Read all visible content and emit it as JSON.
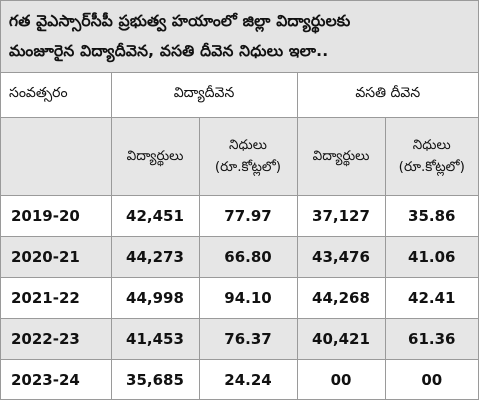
{
  "title": {
    "line1": "గత వైఎస్సార్‌సీపీ ప్రభుత్వ హయాంలో జిల్లా విద్యార్థులకు",
    "line2": "మంజూరైన విద్యాదీవెన, వసతి దీవెన నిధులు ఇలా.."
  },
  "headers": {
    "year": "సంవత్సరం",
    "group1": "విద్యాదీవెన",
    "group2": "వసతి దీవెన",
    "students": "విద్యార్థులు",
    "funds_word": "నిధులు",
    "funds_unit": "(రూ.కోట్లలో)"
  },
  "rows": [
    {
      "year": "2019-20",
      "vd_students": "42,451",
      "vd_funds": "77.97",
      "vs_students": "37,127",
      "vs_funds": "35.86"
    },
    {
      "year": "2020-21",
      "vd_students": "44,273",
      "vd_funds": "66.80",
      "vs_students": "43,476",
      "vs_funds": "41.06"
    },
    {
      "year": "2021-22",
      "vd_students": "44,998",
      "vd_funds": "94.10",
      "vs_students": "44,268",
      "vs_funds": "42.41"
    },
    {
      "year": "2022-23",
      "vd_students": "41,453",
      "vd_funds": "76.37",
      "vs_students": "40,421",
      "vs_funds": "61.36"
    },
    {
      "year": "2023-24",
      "vd_students": "35,685",
      "vd_funds": "24.24",
      "vs_students": "00",
      "vs_funds": "00"
    }
  ],
  "colors": {
    "title_bg": "#e4e4e4",
    "shaded_row_bg": "#e6e6e6",
    "border": "#9a9a9a"
  }
}
